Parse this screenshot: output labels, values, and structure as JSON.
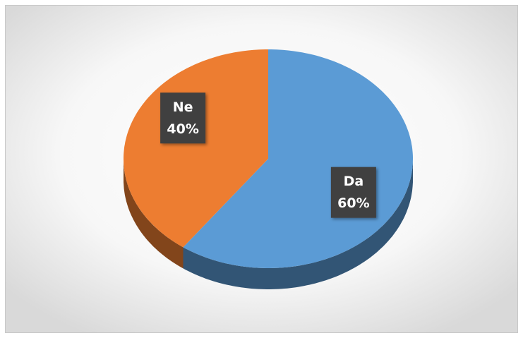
{
  "chart_data": {
    "type": "pie3d",
    "categories": [
      "Da",
      "Ne"
    ],
    "values": [
      60,
      40
    ],
    "value_labels": [
      "60%",
      "40%"
    ],
    "colors": [
      "#5b9bd5",
      "#ed7d31"
    ]
  }
}
